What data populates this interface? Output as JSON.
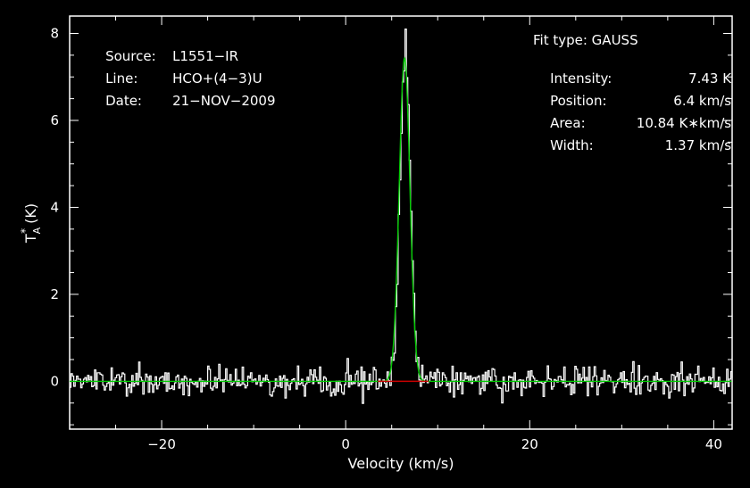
{
  "chart_data": {
    "type": "line",
    "title": "",
    "xlabel": "Velocity (km/s)",
    "ylabel_main": "T",
    "ylabel_sub": "A",
    "ylabel_sup": "*",
    "ylabel_unit": "(K)",
    "xlim": [
      -30,
      42
    ],
    "ylim": [
      -1.1,
      8.4
    ],
    "x_ticks": [
      -20,
      0,
      20,
      40
    ],
    "x_tick_labels": [
      "−20",
      "0",
      "20",
      "40"
    ],
    "y_ticks": [
      0,
      2,
      4,
      6,
      8
    ],
    "y_tick_labels": [
      "0",
      "2",
      "4",
      "6",
      "8"
    ],
    "grid": false,
    "colors": {
      "spectrum": "#ffffff",
      "fit": "#00cc00",
      "baseline": "#cc0000",
      "frame": "#ffffff",
      "background": "#000000"
    },
    "fit": {
      "amplitude": 7.43,
      "center": 6.4,
      "fwhm": 1.37
    },
    "baseline_range": [
      3.5,
      9.0
    ],
    "spectrum": {
      "x_start": -30,
      "x_step": 0.15,
      "noise_rms": 0.17,
      "peak_value": 8.1
    }
  },
  "info_left": [
    {
      "label": "Source:",
      "value": "L1551−IR"
    },
    {
      "label": "Line:",
      "value": "HCO+(4−3)U"
    },
    {
      "label": "Date:",
      "value": "21−NOV−2009"
    }
  ],
  "info_right": {
    "fit_type": "Fit type: GAUSS",
    "rows": [
      {
        "label": "Intensity:",
        "value": "7.43 K"
      },
      {
        "label": "Position:",
        "value": "6.4 km/s"
      },
      {
        "label": "Area:",
        "value": "10.84 K∗km/s"
      },
      {
        "label": "Width:",
        "value": "1.37 km/s"
      }
    ]
  }
}
